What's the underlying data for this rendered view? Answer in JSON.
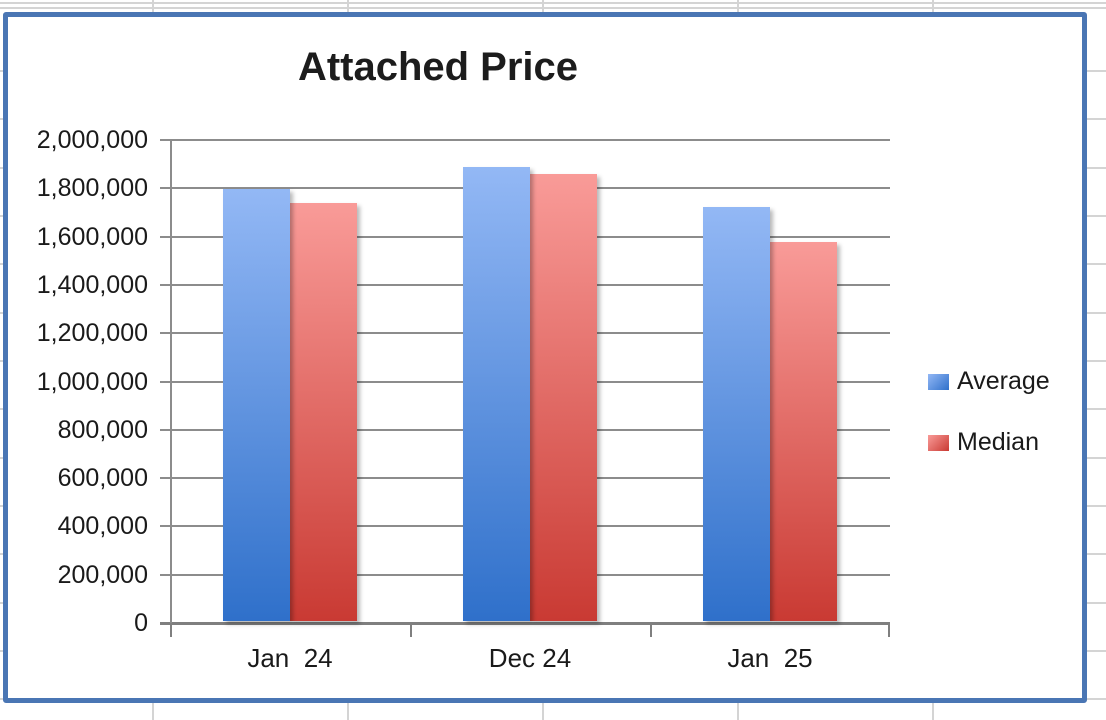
{
  "chart_data": {
    "type": "bar",
    "title": "Attached Price",
    "categories": [
      "Jan  24",
      "Dec 24",
      "Jan  25"
    ],
    "series": [
      {
        "name": "Average",
        "values": [
          1790000,
          1880000,
          1715000
        ],
        "color_light": "#93b8f5",
        "color_dark": "#2f70ca"
      },
      {
        "name": "Median",
        "values": [
          1730000,
          1850000,
          1570000
        ],
        "color_light": "#f99b98",
        "color_dark": "#c93a33"
      }
    ],
    "ylim": [
      0,
      2000000
    ],
    "ytick_step": 200000,
    "ytick_labels": [
      "0",
      "200,000",
      "400,000",
      "600,000",
      "800,000",
      "1,000,000",
      "1,200,000",
      "1,400,000",
      "1,600,000",
      "1,800,000",
      "2,000,000"
    ],
    "xlabel": "",
    "ylabel": "",
    "grid": true,
    "legend_position": "right"
  },
  "colors": {
    "chart_border": "#4a76b4",
    "plot_gridline": "#8c8c8c",
    "axis_line": "#7f7f7f",
    "sheet_gridline": "#d4d4d4",
    "title_text": "#1c1c1c",
    "label_text": "#1a1a1a"
  }
}
